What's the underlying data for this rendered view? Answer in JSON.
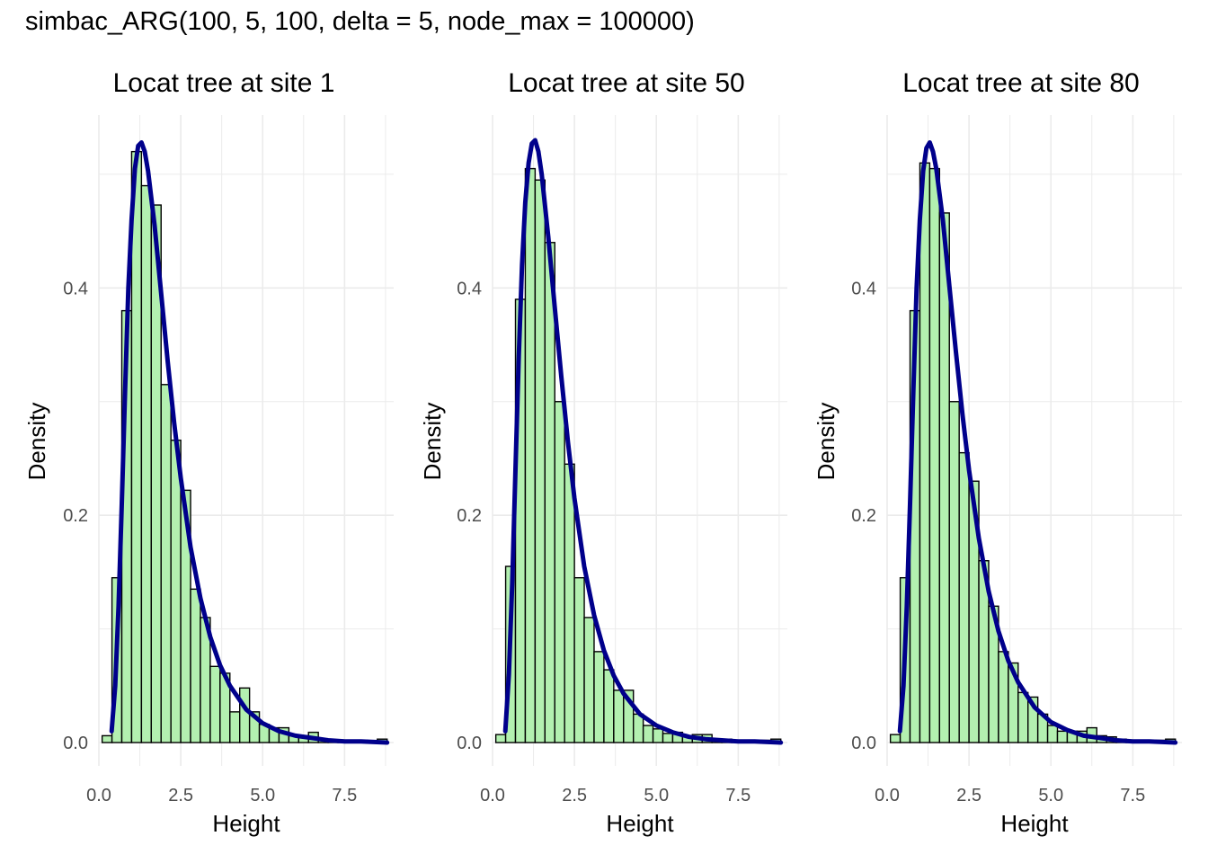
{
  "title": "simbac_ARG(100, 5, 100, delta = 5, node_max = 100000)",
  "colors": {
    "bar_fill": "#b3f0b0",
    "bar_stroke": "#000000",
    "curve": "#00008b",
    "grid": "#ebebeb"
  },
  "chart_data": [
    {
      "type": "bar",
      "title": "Locat tree at site 1",
      "xlabel": "Height",
      "ylabel": "Density",
      "xlim": [
        0,
        9
      ],
      "ylim": [
        0,
        0.53
      ],
      "x_ticks": [
        0,
        2.5,
        5,
        7.5
      ],
      "x_tick_labels": [
        "0.0",
        "2.5",
        "5.0",
        "7.5"
      ],
      "y_ticks": [
        0,
        0.2,
        0.4
      ],
      "y_tick_labels": [
        "0.0",
        "0.2",
        "0.4"
      ],
      "grid": true,
      "bin_width": 0.3,
      "bin_starts": [
        0.1,
        0.4,
        0.7,
        1.0,
        1.3,
        1.6,
        1.9,
        2.2,
        2.5,
        2.8,
        3.1,
        3.4,
        3.7,
        4.0,
        4.3,
        4.6,
        4.9,
        5.2,
        5.5,
        5.8,
        6.1,
        6.4,
        6.7,
        7.0,
        7.3,
        7.6,
        7.9,
        8.2,
        8.5
      ],
      "values": [
        0.006,
        0.145,
        0.38,
        0.52,
        0.49,
        0.473,
        0.315,
        0.266,
        0.222,
        0.135,
        0.11,
        0.067,
        0.061,
        0.027,
        0.048,
        0.027,
        0.016,
        0.013,
        0.013,
        0.006,
        0.006,
        0.009,
        0.003,
        0.002,
        0.002,
        0.001,
        0.002,
        0.001,
        0.003
      ],
      "curve": [
        [
          0.39,
          0.01
        ],
        [
          0.5,
          0.05
        ],
        [
          0.6,
          0.12
        ],
        [
          0.7,
          0.21
        ],
        [
          0.8,
          0.31
        ],
        [
          0.9,
          0.4
        ],
        [
          1.0,
          0.46
        ],
        [
          1.1,
          0.505
        ],
        [
          1.2,
          0.525
        ],
        [
          1.3,
          0.528
        ],
        [
          1.4,
          0.52
        ],
        [
          1.5,
          0.503
        ],
        [
          1.7,
          0.455
        ],
        [
          1.9,
          0.396
        ],
        [
          2.1,
          0.336
        ],
        [
          2.3,
          0.281
        ],
        [
          2.5,
          0.233
        ],
        [
          2.8,
          0.172
        ],
        [
          3.1,
          0.127
        ],
        [
          3.4,
          0.093
        ],
        [
          3.7,
          0.068
        ],
        [
          4.0,
          0.05
        ],
        [
          4.5,
          0.029
        ],
        [
          5.0,
          0.017
        ],
        [
          5.5,
          0.01
        ],
        [
          6.0,
          0.006
        ],
        [
          6.5,
          0.004
        ],
        [
          7.0,
          0.002
        ],
        [
          7.5,
          0.001
        ],
        [
          8.0,
          0.001
        ],
        [
          8.8,
          0.0
        ]
      ]
    },
    {
      "type": "bar",
      "title": "Locat tree at site 50",
      "xlabel": "Height",
      "ylabel": "Density",
      "xlim": [
        0,
        9
      ],
      "ylim": [
        0,
        0.53
      ],
      "x_ticks": [
        0,
        2.5,
        5,
        7.5
      ],
      "x_tick_labels": [
        "0.0",
        "2.5",
        "5.0",
        "7.5"
      ],
      "y_ticks": [
        0,
        0.2,
        0.4
      ],
      "y_tick_labels": [
        "0.0",
        "0.2",
        "0.4"
      ],
      "grid": true,
      "bin_width": 0.3,
      "bin_starts": [
        0.1,
        0.4,
        0.7,
        1.0,
        1.3,
        1.6,
        1.9,
        2.2,
        2.5,
        2.8,
        3.1,
        3.4,
        3.7,
        4.0,
        4.3,
        4.6,
        4.9,
        5.2,
        5.5,
        5.8,
        6.1,
        6.4,
        6.7,
        7.0,
        7.3,
        7.6,
        7.9,
        8.2,
        8.5
      ],
      "values": [
        0.007,
        0.155,
        0.39,
        0.505,
        0.495,
        0.44,
        0.3,
        0.245,
        0.145,
        0.11,
        0.08,
        0.064,
        0.046,
        0.046,
        0.025,
        0.015,
        0.012,
        0.008,
        0.009,
        0.006,
        0.007,
        0.007,
        0.003,
        0.003,
        0.002,
        0.001,
        0.001,
        0.002,
        0.003
      ],
      "curve": [
        [
          0.39,
          0.01
        ],
        [
          0.5,
          0.06
        ],
        [
          0.6,
          0.14
        ],
        [
          0.7,
          0.24
        ],
        [
          0.8,
          0.34
        ],
        [
          0.9,
          0.42
        ],
        [
          1.0,
          0.475
        ],
        [
          1.1,
          0.51
        ],
        [
          1.2,
          0.527
        ],
        [
          1.3,
          0.53
        ],
        [
          1.4,
          0.52
        ],
        [
          1.5,
          0.5
        ],
        [
          1.7,
          0.445
        ],
        [
          1.9,
          0.383
        ],
        [
          2.1,
          0.322
        ],
        [
          2.3,
          0.265
        ],
        [
          2.5,
          0.215
        ],
        [
          2.8,
          0.155
        ],
        [
          3.1,
          0.112
        ],
        [
          3.4,
          0.081
        ],
        [
          3.7,
          0.059
        ],
        [
          4.0,
          0.043
        ],
        [
          4.5,
          0.025
        ],
        [
          5.0,
          0.015
        ],
        [
          5.5,
          0.009
        ],
        [
          6.0,
          0.005
        ],
        [
          6.5,
          0.003
        ],
        [
          7.0,
          0.002
        ],
        [
          7.5,
          0.001
        ],
        [
          8.0,
          0.001
        ],
        [
          8.8,
          0.0
        ]
      ]
    },
    {
      "type": "bar",
      "title": "Locat tree at site 80",
      "xlabel": "Height",
      "ylabel": "Density",
      "xlim": [
        0,
        9
      ],
      "ylim": [
        0,
        0.53
      ],
      "x_ticks": [
        0,
        2.5,
        5,
        7.5
      ],
      "x_tick_labels": [
        "0.0",
        "2.5",
        "5.0",
        "7.5"
      ],
      "y_ticks": [
        0,
        0.2,
        0.4
      ],
      "y_tick_labels": [
        "0.0",
        "0.2",
        "0.4"
      ],
      "grid": true,
      "bin_width": 0.3,
      "bin_starts": [
        0.1,
        0.4,
        0.7,
        1.0,
        1.3,
        1.6,
        1.9,
        2.2,
        2.5,
        2.8,
        3.1,
        3.4,
        3.7,
        4.0,
        4.3,
        4.6,
        4.9,
        5.2,
        5.5,
        5.8,
        6.1,
        6.4,
        6.7,
        7.0,
        7.3,
        7.6,
        7.9,
        8.2,
        8.5
      ],
      "values": [
        0.007,
        0.145,
        0.38,
        0.51,
        0.505,
        0.466,
        0.3,
        0.255,
        0.23,
        0.16,
        0.12,
        0.08,
        0.07,
        0.044,
        0.04,
        0.025,
        0.015,
        0.01,
        0.01,
        0.01,
        0.013,
        0.006,
        0.005,
        0.003,
        0.002,
        0.001,
        0.001,
        0.002,
        0.003
      ],
      "curve": [
        [
          0.39,
          0.01
        ],
        [
          0.5,
          0.05
        ],
        [
          0.6,
          0.12
        ],
        [
          0.7,
          0.21
        ],
        [
          0.8,
          0.31
        ],
        [
          0.9,
          0.4
        ],
        [
          1.0,
          0.46
        ],
        [
          1.1,
          0.503
        ],
        [
          1.2,
          0.523
        ],
        [
          1.3,
          0.528
        ],
        [
          1.4,
          0.52
        ],
        [
          1.5,
          0.505
        ],
        [
          1.7,
          0.46
        ],
        [
          1.9,
          0.402
        ],
        [
          2.1,
          0.344
        ],
        [
          2.3,
          0.289
        ],
        [
          2.5,
          0.24
        ],
        [
          2.8,
          0.18
        ],
        [
          3.1,
          0.133
        ],
        [
          3.4,
          0.098
        ],
        [
          3.7,
          0.072
        ],
        [
          4.0,
          0.053
        ],
        [
          4.5,
          0.031
        ],
        [
          5.0,
          0.018
        ],
        [
          5.5,
          0.011
        ],
        [
          6.0,
          0.006
        ],
        [
          6.5,
          0.004
        ],
        [
          7.0,
          0.002
        ],
        [
          7.5,
          0.001
        ],
        [
          8.0,
          0.001
        ],
        [
          8.8,
          0.0
        ]
      ]
    }
  ]
}
